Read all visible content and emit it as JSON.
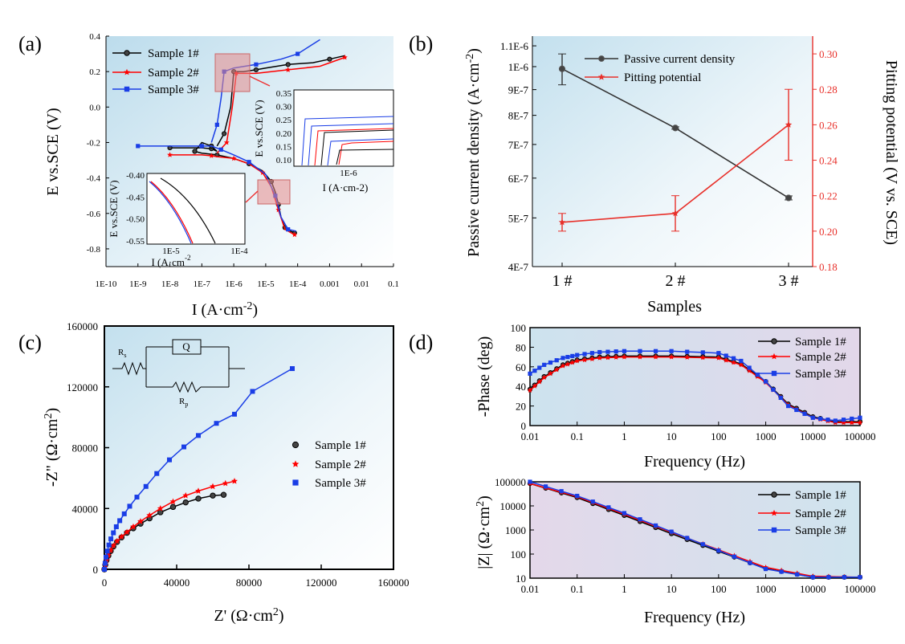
{
  "colors": {
    "sample1": "#000000",
    "sample2": "#ff0000",
    "sample3": "#1a3ee6",
    "pitting": "#e8302a",
    "passive": "#333333",
    "bg_blue": "#cfe6f2",
    "bg_purple": "#dcd4e8",
    "inset_box": "#e88b8b"
  },
  "panels": {
    "a": "(a)",
    "b": "(b)",
    "c": "(c)",
    "d": "(d)"
  },
  "chart_data": [
    {
      "id": "a",
      "type": "line",
      "xlabel_main": "I (A·cm",
      "xlabel_sup": "-2",
      "xlabel_end": ")",
      "ylabel": "E vs.SCE (V)",
      "xscale": "log",
      "xlim": [
        1e-10,
        0.1
      ],
      "ylim": [
        -0.9,
        0.4
      ],
      "xticks": [
        "1E-10",
        "1E-9",
        "1E-8",
        "1E-7",
        "1E-6",
        "1E-5",
        "1E-4",
        "0.001",
        "0.01",
        "0.1"
      ],
      "yticks": [
        "-0.8",
        "-0.6",
        "-0.4",
        "-0.2",
        "0.0",
        "0.2",
        "0.4"
      ],
      "legend": [
        "Sample 1#",
        "Sample 2#",
        "Sample 3#"
      ],
      "series": [
        {
          "name": "Sample 1#",
          "x": [
            1e-08,
            1e-07,
            2e-07,
            3e-07,
            2e-07,
            1e-07,
            6e-08,
            1e-07,
            3e-07,
            1e-06,
            3e-06,
            8e-06,
            1.5e-05,
            2e-05,
            2.5e-05,
            3e-05,
            4e-05,
            6e-05,
            8e-05
          ],
          "y": [
            -0.23,
            -0.23,
            -0.235,
            -0.25,
            -0.22,
            -0.2,
            -0.25,
            -0.26,
            -0.27,
            -0.29,
            -0.32,
            -0.36,
            -0.42,
            -0.48,
            -0.55,
            -0.62,
            -0.68,
            -0.7,
            -0.71
          ],
          "upper_x": [
            3e-07,
            5e-07,
            8e-07,
            1e-06,
            2e-06,
            5e-06,
            1e-05,
            5e-05,
            0.0003,
            0.001,
            0.003
          ],
          "upper_y": [
            -0.22,
            -0.15,
            0.0,
            0.2,
            0.2,
            0.21,
            0.22,
            0.24,
            0.25,
            0.27,
            0.29
          ]
        },
        {
          "name": "Sample 2#",
          "x": [
            1e-08,
            1e-07,
            2e-07,
            3e-07,
            1e-06,
            3e-06,
            8e-06,
            1.5e-05,
            2.5e-05,
            4e-05,
            8e-05
          ],
          "y": [
            -0.27,
            -0.27,
            -0.275,
            -0.28,
            -0.29,
            -0.32,
            -0.37,
            -0.45,
            -0.58,
            -0.69,
            -0.72
          ],
          "upper_x": [
            3e-07,
            6e-07,
            9e-07,
            1.2e-06,
            5e-06,
            5e-05,
            0.0005,
            0.003
          ],
          "upper_y": [
            -0.26,
            -0.2,
            0.0,
            0.19,
            0.19,
            0.21,
            0.23,
            0.28
          ]
        },
        {
          "name": "Sample 3#",
          "x": [
            1e-09,
            1e-08,
            1e-07,
            2e-07,
            4e-07,
            1e-06,
            3e-06,
            1e-05,
            2e-05,
            3e-05,
            5e-05,
            9e-05
          ],
          "y": [
            -0.22,
            -0.22,
            -0.22,
            -0.22,
            -0.24,
            -0.27,
            -0.31,
            -0.38,
            -0.5,
            -0.62,
            -0.69,
            -0.7
          ],
          "upper_x": [
            2e-07,
            3e-07,
            4e-07,
            5e-07,
            1e-06,
            5e-06,
            3e-05,
            0.0001,
            0.0005
          ],
          "upper_y": [
            -0.2,
            -0.1,
            0.05,
            0.2,
            0.22,
            0.24,
            0.27,
            0.3,
            0.38
          ]
        }
      ],
      "inset_top": {
        "xlabel": "I (A·cm-2)",
        "ylabel": "E vs.SCE (V)",
        "xtick": "1E-6",
        "yticks": [
          "0.10",
          "0.15",
          "0.20",
          "0.25",
          "0.30",
          "0.35"
        ]
      },
      "inset_bottom": {
        "xlabel": "I (A·cm",
        "xsup": "-2",
        "ylabel": "E vs.SCE (V)",
        "xticks": [
          "1E-5",
          "1E-4"
        ],
        "yticks": [
          "-0.40",
          "-0.45",
          "-0.50",
          "-0.55"
        ]
      }
    },
    {
      "id": "b",
      "type": "line",
      "categories": [
        "1 #",
        "2 #",
        "3 #"
      ],
      "xlabel": "Samples",
      "ylabel_left": "Passive current density (A·cm",
      "ylabel_left_sup": "-2",
      "ylabel_left_end": ")",
      "ylabel_right": "Pitting potential (V vs. SCE)",
      "yscale_left": "log",
      "ylim_left": [
        4e-07,
        1.15e-06
      ],
      "yticks_left": [
        "4E-7",
        "5E-7",
        "6E-7",
        "7E-7",
        "8E-7",
        "9E-7",
        "1E-6",
        "1.1E-6"
      ],
      "ylim_right": [
        0.18,
        0.31
      ],
      "yticks_right": [
        "0.18",
        "0.20",
        "0.22",
        "0.24",
        "0.26",
        "0.28",
        "0.30"
      ],
      "series": [
        {
          "name": "Passive current density",
          "axis": "left",
          "values": [
            9.9e-07,
            7.55e-07,
            5.48e-07
          ],
          "errors": [
            7e-08,
            4e-09,
            5e-09
          ]
        },
        {
          "name": "Pitting potential",
          "axis": "right",
          "values": [
            0.205,
            0.21,
            0.26
          ],
          "errors": [
            0.005,
            0.01,
            0.02
          ]
        }
      ]
    },
    {
      "id": "c",
      "type": "scatter",
      "xlabel": "Z' (Ω·cm",
      "xlabel_sup": "2",
      "xlabel_end": ")",
      "ylabel": "-Z\" (Ω·cm",
      "ylabel_sup": "2",
      "ylabel_end": ")",
      "xlim": [
        0,
        160000
      ],
      "ylim": [
        0,
        160000
      ],
      "xticks": [
        "0",
        "40000",
        "80000",
        "120000",
        "160000"
      ],
      "yticks": [
        "0",
        "40000",
        "80000",
        "120000",
        "160000"
      ],
      "legend": [
        "Sample 1#",
        "Sample 2#",
        "Sample 3#"
      ],
      "circuit": {
        "rs": "R",
        "rs_sub": "s",
        "q": "Q",
        "rp": "R",
        "rp_sub": "p"
      },
      "series": [
        {
          "name": "Sample 1#",
          "x": [
            0,
            500,
            1200,
            2200,
            3500,
            5000,
            7000,
            9500,
            12500,
            16000,
            20000,
            25000,
            31000,
            38000,
            45000,
            52000,
            60000,
            66000
          ],
          "y": [
            0,
            3000,
            6000,
            9000,
            12000,
            15000,
            18000,
            21000,
            24000,
            27000,
            30000,
            33500,
            37500,
            41000,
            44000,
            46500,
            48500,
            49000
          ]
        },
        {
          "name": "Sample 2#",
          "x": [
            0,
            500,
            1200,
            2200,
            3500,
            5000,
            7000,
            9500,
            12500,
            16000,
            20000,
            25000,
            31000,
            38000,
            45000,
            52000,
            60000,
            67000,
            72000
          ],
          "y": [
            0,
            3000,
            6000,
            9200,
            12500,
            15500,
            18500,
            21500,
            24500,
            28000,
            31500,
            35500,
            40000,
            44500,
            48500,
            51500,
            54500,
            56500,
            58000
          ]
        },
        {
          "name": "Sample 3#",
          "x": [
            0,
            400,
            900,
            1600,
            2500,
            3600,
            5000,
            6600,
            8500,
            11000,
            14000,
            18000,
            23000,
            29000,
            36000,
            44000,
            52000,
            62000,
            72000,
            82000,
            104000
          ],
          "y": [
            0,
            4000,
            8000,
            12000,
            16000,
            20000,
            24000,
            28000,
            32000,
            36500,
            41500,
            47500,
            54500,
            63000,
            72000,
            80500,
            88000,
            96000,
            102000,
            117000,
            132000
          ]
        }
      ]
    },
    {
      "id": "d1",
      "type": "line",
      "xlabel": "Frequency (Hz)",
      "ylabel": "-Phase (deg)",
      "xscale": "log",
      "xlim": [
        0.01,
        100000
      ],
      "ylim": [
        0,
        100
      ],
      "xticks": [
        "0.01",
        "0.1",
        "1",
        "10",
        "100",
        "1000",
        "10000",
        "100000"
      ],
      "yticks": [
        "0",
        "10",
        "20",
        "30",
        "40",
        "50",
        "60",
        "70",
        "80",
        "90",
        "100"
      ],
      "legend": [
        "Sample 1#",
        "Sample 2#",
        "Sample 3#"
      ],
      "series": [
        {
          "name": "Sample 1#",
          "x": [
            0.01,
            0.02,
            0.05,
            0.1,
            0.3,
            1,
            10,
            100,
            300,
            1000,
            3000,
            10000,
            30000,
            100000
          ],
          "y": [
            37,
            50,
            62,
            67,
            70,
            71,
            71,
            70,
            63,
            45,
            22,
            9,
            4,
            4
          ]
        },
        {
          "name": "Sample 2#",
          "x": [
            0.01,
            0.02,
            0.05,
            0.1,
            0.3,
            1,
            10,
            100,
            300,
            1000,
            3000,
            10000,
            30000,
            100000
          ],
          "y": [
            36,
            49,
            61,
            66,
            69,
            70,
            70,
            69,
            62,
            44,
            21,
            8,
            3,
            3
          ]
        },
        {
          "name": "Sample 3#",
          "x": [
            0.01,
            0.02,
            0.05,
            0.1,
            0.3,
            1,
            10,
            100,
            300,
            1000,
            3000,
            10000,
            30000,
            100000
          ],
          "y": [
            53,
            62,
            69,
            72,
            75,
            76,
            76,
            74,
            66,
            45,
            20,
            8,
            5,
            8
          ]
        }
      ]
    },
    {
      "id": "d2",
      "type": "line",
      "xlabel": "Frequency (Hz)",
      "ylabel": "|Z| (Ω·cm",
      "ylabel_sup": "2",
      "ylabel_end": ")",
      "xscale": "log",
      "yscale": "log",
      "xlim": [
        0.01,
        100000
      ],
      "ylim": [
        10,
        100000
      ],
      "xticks": [
        "0.01",
        "0.1",
        "1",
        "10",
        "100",
        "1000",
        "10000",
        "100000"
      ],
      "yticks": [
        "10",
        "100",
        "1000",
        "10000",
        "100000"
      ],
      "legend": [
        "Sample 1#",
        "Sample 2#",
        "Sample 3#"
      ],
      "series": [
        {
          "name": "Sample 1#",
          "x": [
            0.01,
            0.1,
            1,
            10,
            100,
            1000,
            10000,
            100000
          ],
          "y": [
            85000,
            22000,
            4000,
            700,
            130,
            25,
            11,
            11
          ]
        },
        {
          "name": "Sample 2#",
          "x": [
            0.01,
            0.1,
            1,
            10,
            100,
            1000,
            10000,
            100000
          ],
          "y": [
            85000,
            24000,
            4500,
            800,
            150,
            28,
            12,
            11
          ]
        },
        {
          "name": "Sample 3#",
          "x": [
            0.01,
            0.1,
            1,
            10,
            100,
            1000,
            10000,
            100000
          ],
          "y": [
            100000,
            26000,
            5000,
            850,
            140,
            24,
            11,
            11
          ]
        }
      ]
    }
  ]
}
